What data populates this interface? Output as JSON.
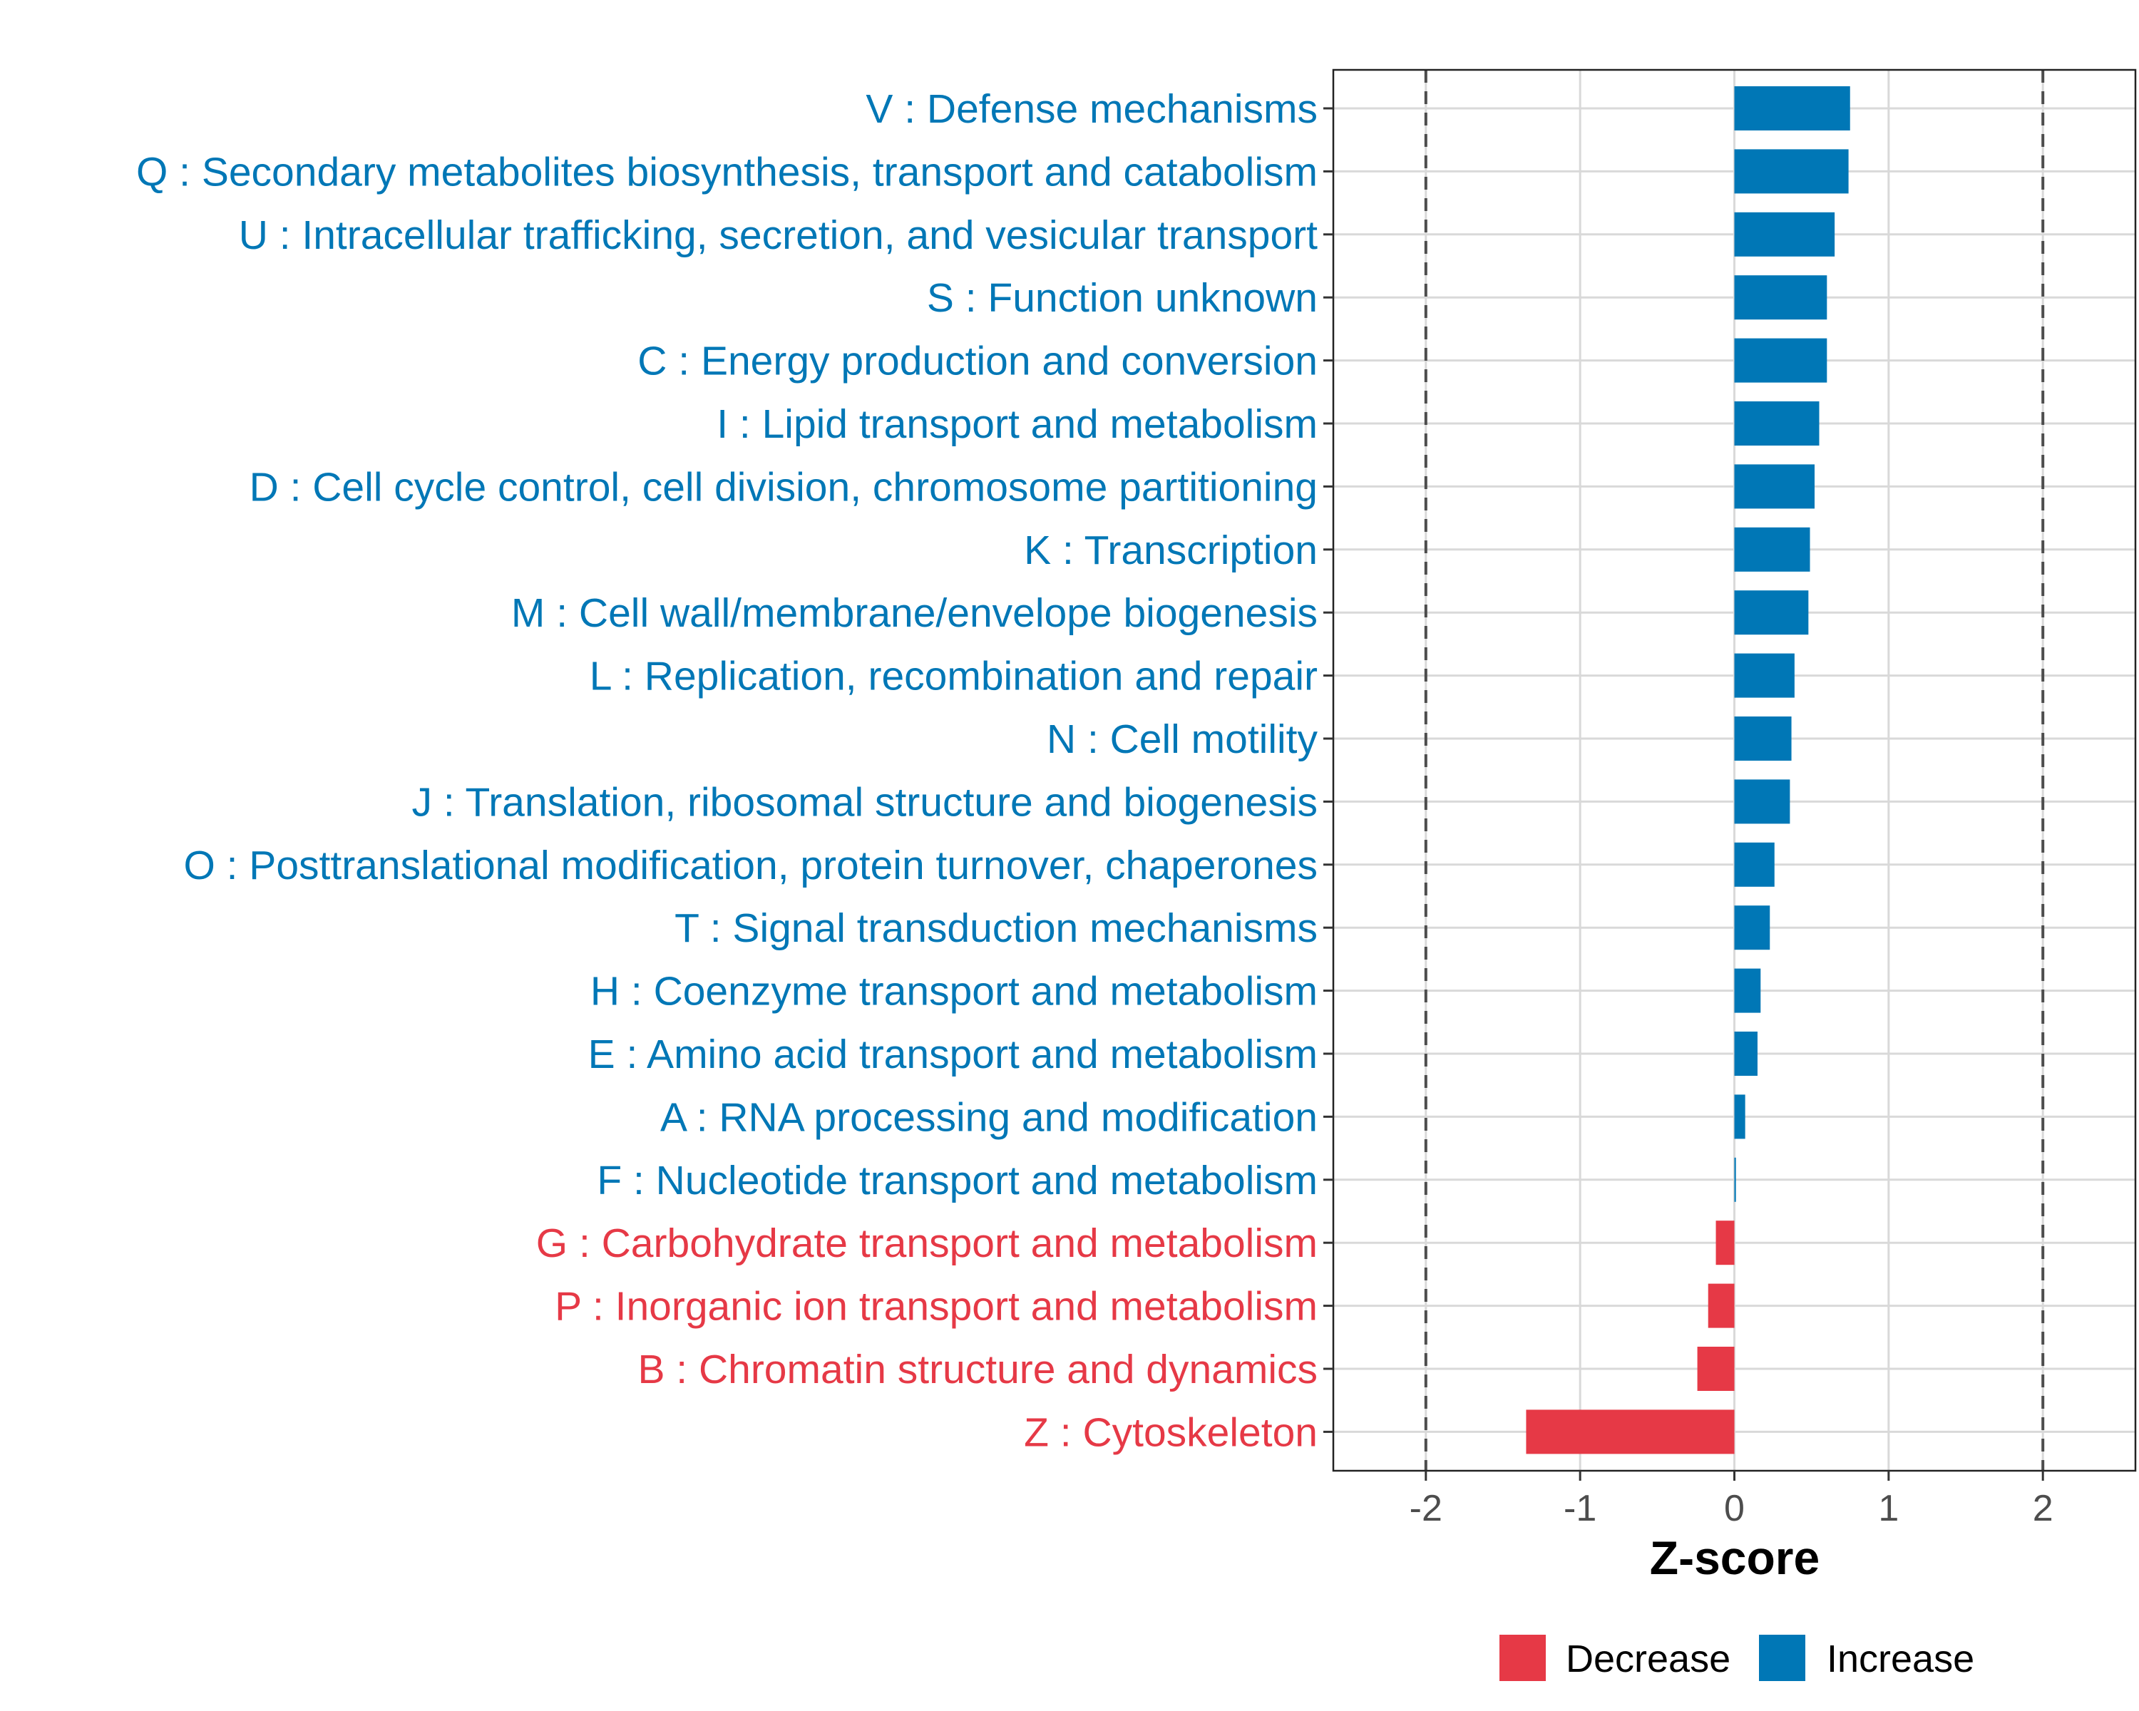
{
  "colors": {
    "increase": "#0077b6",
    "decrease": "#e63946",
    "ref_line": "#4d4d4d",
    "grid": "#d9d9d9"
  },
  "chart_data": {
    "type": "bar",
    "orientation": "horizontal",
    "xlabel": "Z-score",
    "ylabel": "",
    "xlim": [
      -2.6,
      2.6
    ],
    "xticks": [
      -2,
      -1,
      0,
      1,
      2
    ],
    "xtick_labels": [
      "-2",
      "-1",
      "0",
      "1",
      "2"
    ],
    "reference_lines": [
      -2,
      2
    ],
    "grid": true,
    "legend": {
      "placement": "bottom",
      "entries": [
        {
          "label": "Decrease",
          "color": "#e63946"
        },
        {
          "label": "Increase",
          "color": "#0077b6"
        }
      ]
    },
    "categories": [
      "V : Defense mechanisms",
      "Q : Secondary metabolites biosynthesis, transport and catabolism",
      "U : Intracellular trafficking, secretion, and vesicular transport",
      "S : Function unknown",
      "C : Energy production and conversion",
      "I : Lipid transport and metabolism",
      "D : Cell cycle control, cell division, chromosome partitioning",
      "K : Transcription",
      "M : Cell wall/membrane/envelope biogenesis",
      "L : Replication, recombination and repair",
      "N : Cell motility",
      "J : Translation, ribosomal structure and biogenesis",
      "O : Posttranslational modification, protein turnover, chaperones",
      "T : Signal transduction mechanisms",
      "H : Coenzyme transport and metabolism",
      "E : Amino acid transport and metabolism",
      "A : RNA processing and modification",
      "F : Nucleotide transport and metabolism",
      "G : Carbohydrate transport and metabolism",
      "P : Inorganic ion transport and metabolism",
      "B : Chromatin structure and dynamics",
      "Z : Cytoskeleton"
    ],
    "values": [
      0.75,
      0.74,
      0.65,
      0.6,
      0.6,
      0.55,
      0.52,
      0.49,
      0.48,
      0.39,
      0.37,
      0.36,
      0.26,
      0.23,
      0.17,
      0.15,
      0.07,
      0.01,
      -0.12,
      -0.17,
      -0.24,
      -1.35
    ],
    "direction": [
      "Increase",
      "Increase",
      "Increase",
      "Increase",
      "Increase",
      "Increase",
      "Increase",
      "Increase",
      "Increase",
      "Increase",
      "Increase",
      "Increase",
      "Increase",
      "Increase",
      "Increase",
      "Increase",
      "Increase",
      "Increase",
      "Decrease",
      "Decrease",
      "Decrease",
      "Decrease"
    ]
  }
}
